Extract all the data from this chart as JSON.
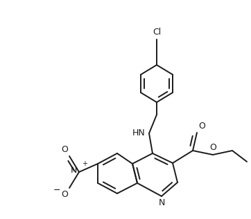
{
  "background_color": "#ffffff",
  "line_color": "#1a1a1a",
  "line_width": 1.4,
  "font_size": 8.5,
  "figsize": [
    3.62,
    3.17
  ],
  "dpi": 100,
  "xlim": [
    0,
    362
  ],
  "ylim": [
    0,
    317
  ]
}
